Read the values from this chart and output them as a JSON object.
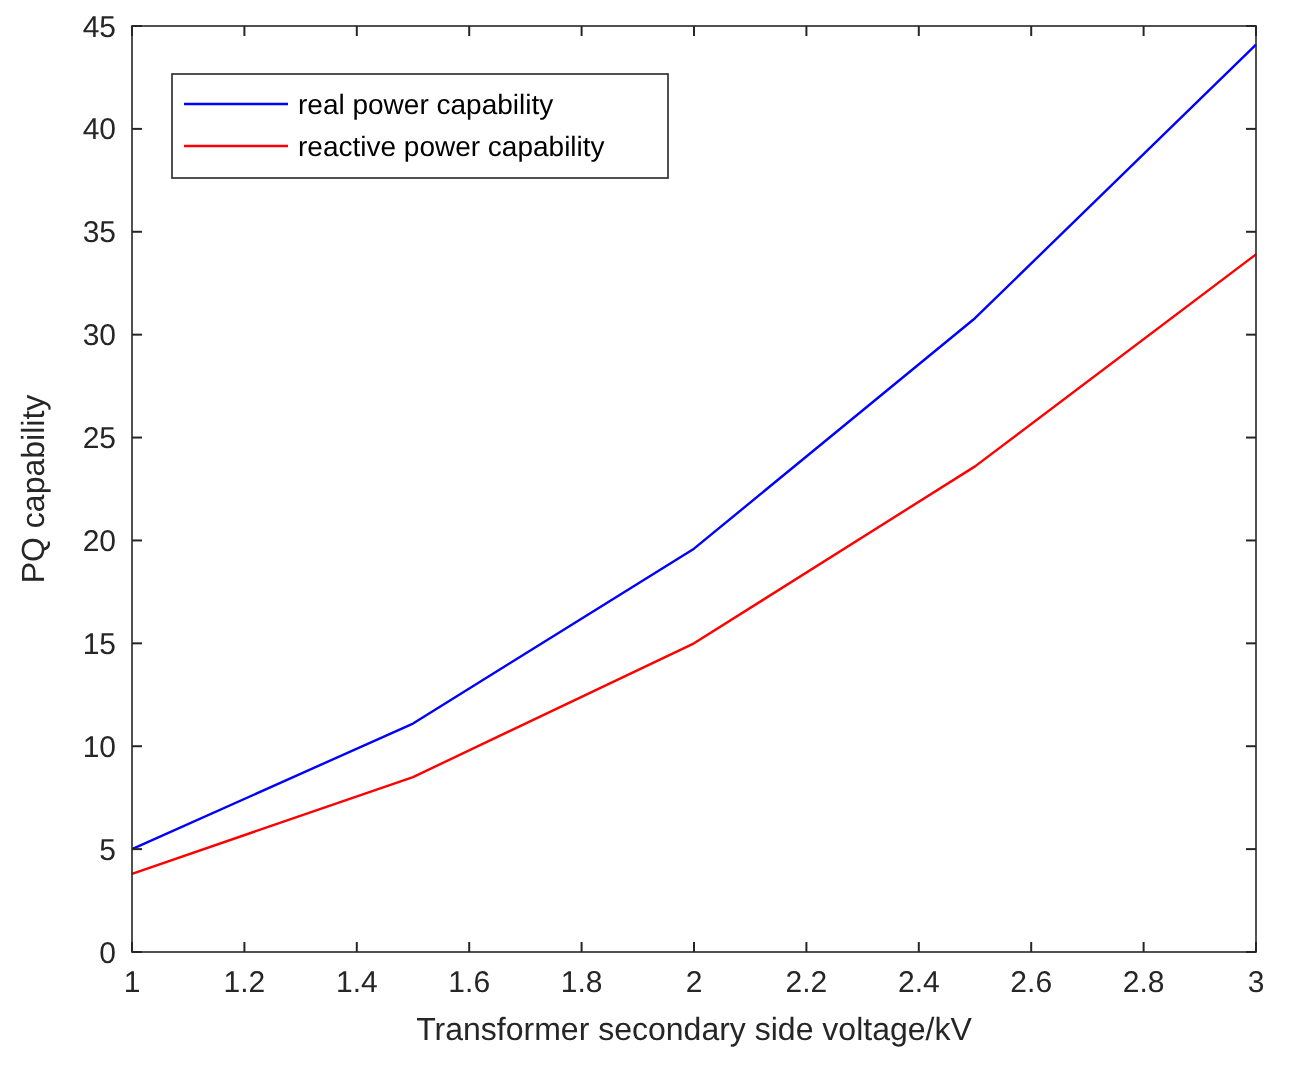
{
  "chart_data": {
    "type": "line",
    "xlabel": "Transformer secondary side voltage/kV",
    "ylabel": "PQ capability",
    "x": [
      1,
      1.5,
      2,
      2.5,
      3
    ],
    "series": [
      {
        "name": "real power capability",
        "color": "#0000ff",
        "values": [
          5.0,
          11.1,
          19.6,
          30.8,
          44.1
        ]
      },
      {
        "name": "reactive power capability",
        "color": "#ff0000",
        "values": [
          3.8,
          8.5,
          15.0,
          23.6,
          33.9
        ]
      }
    ],
    "xlim": [
      1,
      3
    ],
    "xticks": [
      1,
      1.2,
      1.4,
      1.6,
      1.8,
      2,
      2.2,
      2.4,
      2.6,
      2.8,
      3
    ],
    "ylim": [
      0,
      45
    ],
    "yticks": [
      0,
      5,
      10,
      15,
      20,
      25,
      30,
      35,
      40,
      45
    ],
    "grid": false,
    "legend": "top left",
    "marker": "none",
    "line_style": "solid"
  }
}
